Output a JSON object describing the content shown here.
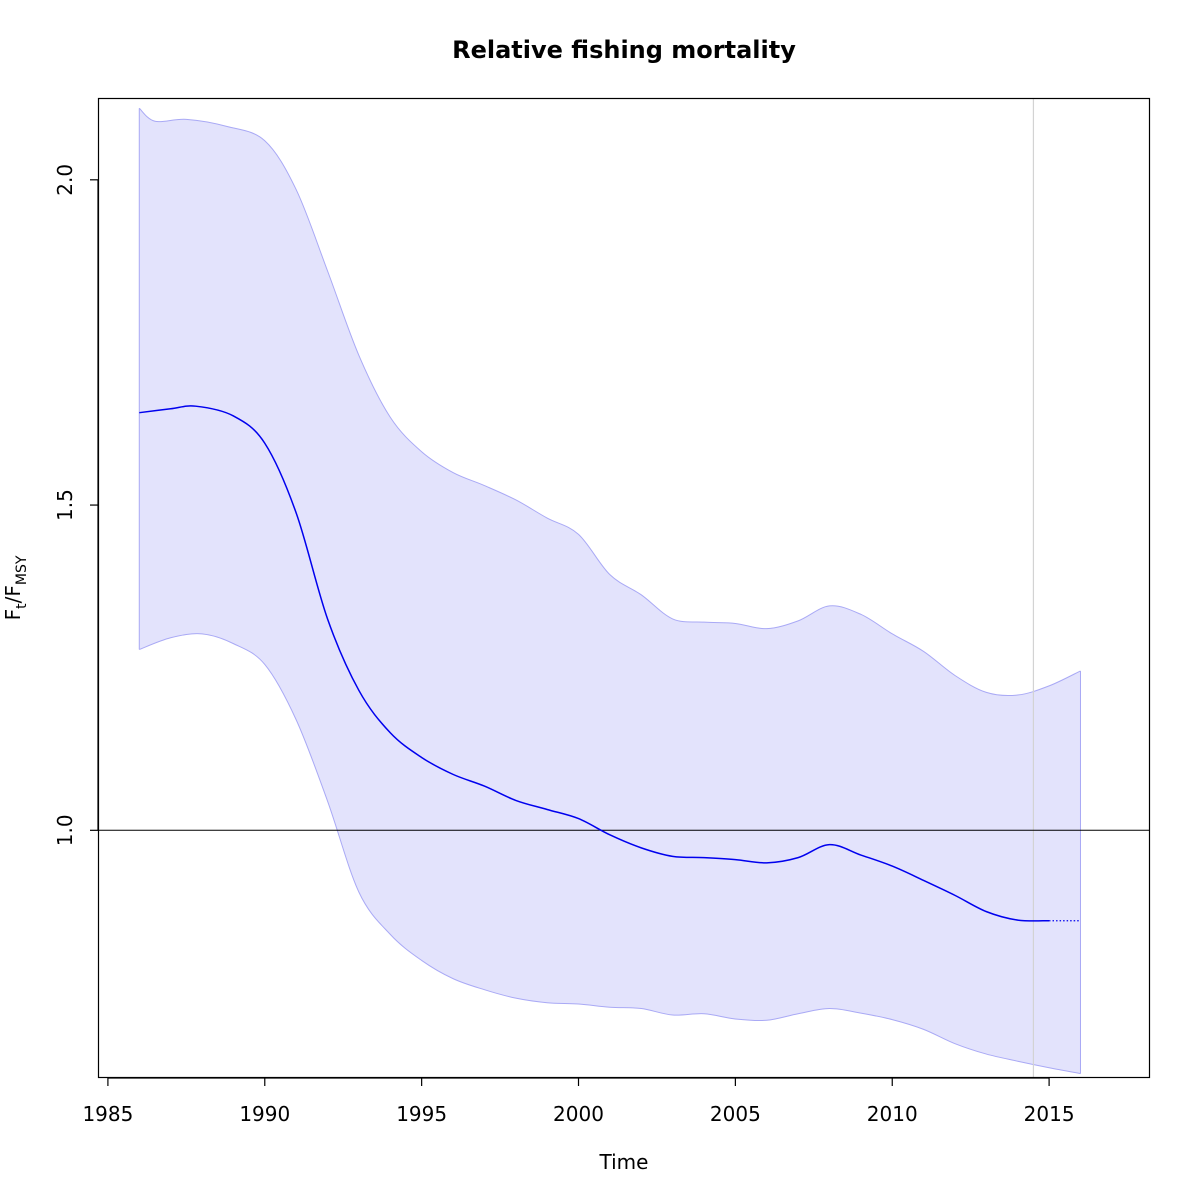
{
  "chart_data": {
    "type": "line",
    "title": "Relative fishing mortality",
    "xlabel": "Time",
    "ylabel": {
      "main": "F",
      "sub1": "t",
      "sep": "/F",
      "sub2": "MSY"
    },
    "xlim": [
      1984.7,
      2018.2
    ],
    "ylim": [
      0.62,
      2.125
    ],
    "x_ticks": [
      1985,
      1990,
      1995,
      2000,
      2005,
      2010,
      2015
    ],
    "y_ticks": [
      1.0,
      1.5,
      2.0
    ],
    "y_tick_labels": [
      "1.0",
      "1.5",
      "2.0"
    ],
    "reference_hline": 1.0,
    "reference_vline": 2014.5,
    "colors": {
      "line": "#0000ee",
      "band_fill": "#e3e3fc",
      "band_edge": "#a9a9f5",
      "ref_line": "#000000",
      "vline": "#d3d3d3"
    },
    "series": [
      {
        "values": [
          [
            1986.0,
            1.642
          ],
          [
            1987.0,
            1.648
          ],
          [
            1987.8,
            1.652
          ],
          [
            1989.0,
            1.637
          ],
          [
            1990.0,
            1.595
          ],
          [
            1991.0,
            1.488
          ],
          [
            1992.0,
            1.325
          ],
          [
            1993.0,
            1.215
          ],
          [
            1994.0,
            1.15
          ],
          [
            1995.0,
            1.112
          ],
          [
            1996.0,
            1.086
          ],
          [
            1997.0,
            1.068
          ],
          [
            1998.0,
            1.046
          ],
          [
            1999.0,
            1.032
          ],
          [
            2000.0,
            1.018
          ],
          [
            2001.0,
            0.993
          ],
          [
            2002.0,
            0.973
          ],
          [
            2003.0,
            0.96
          ],
          [
            2004.0,
            0.958
          ],
          [
            2005.0,
            0.955
          ],
          [
            2006.0,
            0.95
          ],
          [
            2007.0,
            0.958
          ],
          [
            2008.0,
            0.978
          ],
          [
            2009.0,
            0.962
          ],
          [
            2010.0,
            0.945
          ],
          [
            2011.0,
            0.923
          ],
          [
            2012.0,
            0.9
          ],
          [
            2013.0,
            0.875
          ],
          [
            2014.0,
            0.862
          ],
          [
            2015.0,
            0.861
          ]
        ]
      },
      {
        "style": "dotted",
        "values": [
          [
            2015.0,
            0.861
          ],
          [
            2016.0,
            0.861
          ]
        ]
      }
    ],
    "band": {
      "upper": [
        [
          1986.0,
          2.11
        ],
        [
          1986.5,
          2.09
        ],
        [
          1987.5,
          2.093
        ],
        [
          1988.8,
          2.082
        ],
        [
          1990.0,
          2.06
        ],
        [
          1991.0,
          1.985
        ],
        [
          1992.0,
          1.86
        ],
        [
          1993.0,
          1.73
        ],
        [
          1994.0,
          1.635
        ],
        [
          1995.0,
          1.582
        ],
        [
          1996.0,
          1.55
        ],
        [
          1997.0,
          1.53
        ],
        [
          1998.0,
          1.508
        ],
        [
          1999.0,
          1.48
        ],
        [
          2000.0,
          1.455
        ],
        [
          2001.0,
          1.393
        ],
        [
          2002.0,
          1.362
        ],
        [
          2003.0,
          1.325
        ],
        [
          2004.0,
          1.32
        ],
        [
          2005.0,
          1.318
        ],
        [
          2006.0,
          1.31
        ],
        [
          2007.0,
          1.322
        ],
        [
          2008.0,
          1.345
        ],
        [
          2009.0,
          1.332
        ],
        [
          2010.0,
          1.302
        ],
        [
          2011.0,
          1.275
        ],
        [
          2012.0,
          1.238
        ],
        [
          2013.0,
          1.212
        ],
        [
          2014.0,
          1.208
        ],
        [
          2015.0,
          1.222
        ],
        [
          2016.0,
          1.245
        ]
      ],
      "lower": [
        [
          1986.0,
          1.278
        ],
        [
          1987.0,
          1.296
        ],
        [
          1988.0,
          1.302
        ],
        [
          1989.0,
          1.287
        ],
        [
          1990.0,
          1.255
        ],
        [
          1991.0,
          1.17
        ],
        [
          1992.0,
          1.045
        ],
        [
          1993.0,
          0.905
        ],
        [
          1994.0,
          0.84
        ],
        [
          1995.0,
          0.8
        ],
        [
          1996.0,
          0.772
        ],
        [
          1997.0,
          0.755
        ],
        [
          1998.0,
          0.742
        ],
        [
          1999.0,
          0.735
        ],
        [
          2000.0,
          0.733
        ],
        [
          2001.0,
          0.728
        ],
        [
          2002.0,
          0.726
        ],
        [
          2003.0,
          0.716
        ],
        [
          2004.0,
          0.718
        ],
        [
          2005.0,
          0.71
        ],
        [
          2006.0,
          0.708
        ],
        [
          2007.0,
          0.718
        ],
        [
          2008.0,
          0.726
        ],
        [
          2009.0,
          0.719
        ],
        [
          2010.0,
          0.709
        ],
        [
          2011.0,
          0.694
        ],
        [
          2012.0,
          0.672
        ],
        [
          2013.0,
          0.656
        ],
        [
          2014.0,
          0.645
        ],
        [
          2015.0,
          0.635
        ],
        [
          2016.0,
          0.626
        ]
      ]
    }
  }
}
